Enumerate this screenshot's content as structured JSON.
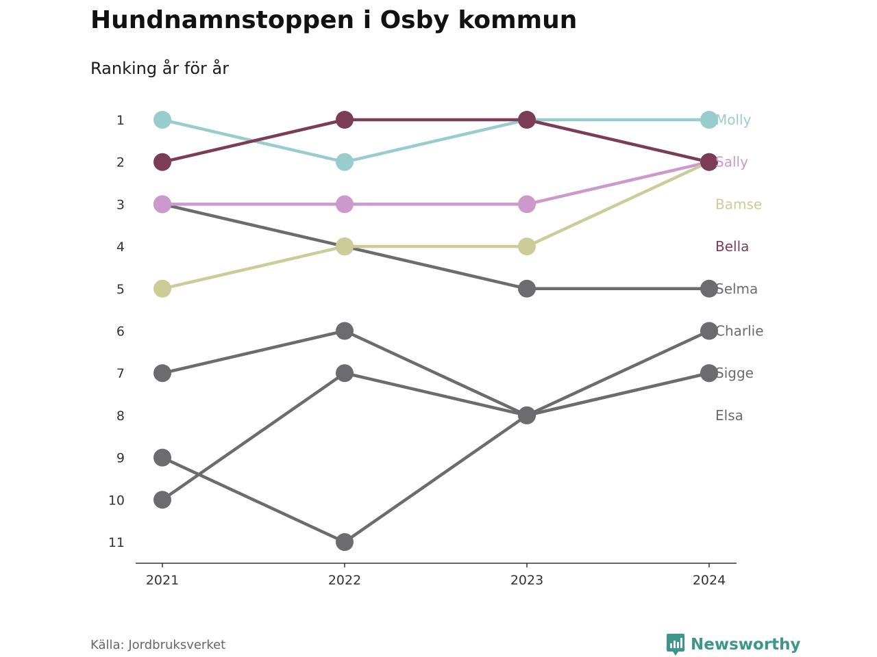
{
  "header": {
    "title": "Hundnamnstoppen i Osby kommun",
    "subtitle": "Ranking år för år"
  },
  "footer": {
    "source": "Källa: Jordbruksverket",
    "brand": "Newsworthy",
    "brand_icon": "chart-bubble-icon",
    "brand_color": "#3d968c"
  },
  "chart_data": {
    "type": "line",
    "chart_kind": "bump",
    "title": "Hundnamnstoppen i Osby kommun",
    "subtitle": "Ranking år för år",
    "xlabel": "",
    "ylabel": "",
    "x": [
      "2021",
      "2022",
      "2023",
      "2024"
    ],
    "yticks": [
      1,
      2,
      3,
      4,
      5,
      6,
      7,
      8,
      9,
      10,
      11
    ],
    "ylim": [
      1,
      11
    ],
    "y_reversed": true,
    "grid": false,
    "legend": "direct labels at right end",
    "series": [
      {
        "name": "Molly",
        "color": "#99cccc",
        "values": [
          1,
          2,
          1,
          1
        ]
      },
      {
        "name": "Sally",
        "color": "#cc99cc",
        "values": [
          3,
          3,
          3,
          2
        ]
      },
      {
        "name": "Bamse",
        "color": "#cccc99",
        "values": [
          5,
          4,
          4,
          2
        ]
      },
      {
        "name": "Bella",
        "color": "#7a3d55",
        "values": [
          2,
          1,
          1,
          2
        ]
      },
      {
        "name": "Selma",
        "color": "#6b6b70",
        "values": [
          3,
          4,
          5,
          5
        ]
      },
      {
        "name": "Charlie",
        "color": "#6b6b70",
        "values": [
          10,
          7,
          8,
          6
        ]
      },
      {
        "name": "Sigge",
        "color": "#6b6b70",
        "values": [
          7,
          6,
          8,
          7
        ]
      },
      {
        "name": "Elsa",
        "color": "#6b6b70",
        "values": [
          9,
          11,
          8,
          7
        ]
      }
    ],
    "labels": [
      {
        "text": "Molly",
        "color": "#99cccc"
      },
      {
        "text": "Sally",
        "color": "#cc99cc"
      },
      {
        "text": "Bamse",
        "color": "#cccc99"
      },
      {
        "text": "Bella",
        "color": "#7a3d55"
      },
      {
        "text": "Selma",
        "color": "#6b6b70"
      },
      {
        "text": "Charlie",
        "color": "#6b6b70"
      },
      {
        "text": "Sigge",
        "color": "#6b6b70"
      },
      {
        "text": "Elsa",
        "color": "#6b6b70"
      }
    ]
  }
}
